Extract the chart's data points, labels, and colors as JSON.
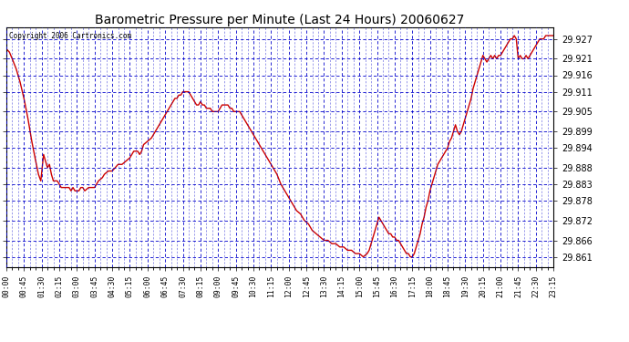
{
  "title": "Barometric Pressure per Minute (Last 24 Hours) 20060627",
  "copyright": "Copyright 2006 Cartronics.com",
  "background_color": "#ffffff",
  "plot_bg_color": "#ffffff",
  "line_color": "#cc0000",
  "grid_color": "#0000cc",
  "yticks": [
    29.861,
    29.866,
    29.872,
    29.878,
    29.883,
    29.888,
    29.894,
    29.899,
    29.905,
    29.911,
    29.916,
    29.921,
    29.927
  ],
  "ymin": 29.858,
  "ymax": 29.9305,
  "xtick_labels": [
    "00:00",
    "00:45",
    "01:30",
    "02:15",
    "03:00",
    "03:45",
    "04:30",
    "05:15",
    "06:00",
    "06:45",
    "07:30",
    "08:15",
    "09:00",
    "09:45",
    "10:30",
    "11:15",
    "12:00",
    "12:45",
    "13:30",
    "14:15",
    "15:00",
    "15:45",
    "16:30",
    "17:15",
    "18:00",
    "18:45",
    "19:30",
    "20:15",
    "21:00",
    "21:45",
    "22:30",
    "23:15"
  ],
  "x_values": [
    0,
    45,
    90,
    135,
    180,
    225,
    270,
    315,
    360,
    405,
    450,
    495,
    540,
    585,
    630,
    675,
    720,
    765,
    810,
    855,
    900,
    945,
    990,
    1035,
    1080,
    1125,
    1170,
    1215,
    1260,
    1305,
    1350,
    1395
  ],
  "pressure_data": [
    [
      0,
      29.924
    ],
    [
      8,
      29.923
    ],
    [
      15,
      29.921
    ],
    [
      25,
      29.918
    ],
    [
      35,
      29.914
    ],
    [
      45,
      29.909
    ],
    [
      55,
      29.903
    ],
    [
      65,
      29.896
    ],
    [
      75,
      29.89
    ],
    [
      82,
      29.886
    ],
    [
      88,
      29.884
    ],
    [
      95,
      29.892
    ],
    [
      100,
      29.89
    ],
    [
      105,
      29.888
    ],
    [
      110,
      29.889
    ],
    [
      115,
      29.886
    ],
    [
      120,
      29.884
    ],
    [
      125,
      29.884
    ],
    [
      130,
      29.884
    ],
    [
      135,
      29.883
    ],
    [
      140,
      29.882
    ],
    [
      145,
      29.882
    ],
    [
      150,
      29.882
    ],
    [
      155,
      29.882
    ],
    [
      160,
      29.882
    ],
    [
      165,
      29.881
    ],
    [
      170,
      29.882
    ],
    [
      175,
      29.881
    ],
    [
      180,
      29.881
    ],
    [
      185,
      29.881
    ],
    [
      190,
      29.882
    ],
    [
      195,
      29.882
    ],
    [
      200,
      29.881
    ],
    [
      210,
      29.882
    ],
    [
      215,
      29.882
    ],
    [
      220,
      29.882
    ],
    [
      225,
      29.882
    ],
    [
      235,
      29.884
    ],
    [
      245,
      29.885
    ],
    [
      250,
      29.886
    ],
    [
      260,
      29.887
    ],
    [
      270,
      29.887
    ],
    [
      285,
      29.889
    ],
    [
      295,
      29.889
    ],
    [
      305,
      29.89
    ],
    [
      315,
      29.891
    ],
    [
      320,
      29.892
    ],
    [
      325,
      29.893
    ],
    [
      330,
      29.893
    ],
    [
      335,
      29.893
    ],
    [
      340,
      29.892
    ],
    [
      345,
      29.893
    ],
    [
      350,
      29.895
    ],
    [
      360,
      29.896
    ],
    [
      370,
      29.897
    ],
    [
      380,
      29.899
    ],
    [
      390,
      29.901
    ],
    [
      400,
      29.903
    ],
    [
      405,
      29.904
    ],
    [
      410,
      29.905
    ],
    [
      415,
      29.906
    ],
    [
      420,
      29.907
    ],
    [
      425,
      29.908
    ],
    [
      430,
      29.909
    ],
    [
      435,
      29.909
    ],
    [
      440,
      29.91
    ],
    [
      445,
      29.91
    ],
    [
      450,
      29.911
    ],
    [
      455,
      29.911
    ],
    [
      460,
      29.911
    ],
    [
      465,
      29.911
    ],
    [
      470,
      29.91
    ],
    [
      475,
      29.909
    ],
    [
      480,
      29.908
    ],
    [
      485,
      29.907
    ],
    [
      490,
      29.907
    ],
    [
      495,
      29.908
    ],
    [
      500,
      29.907
    ],
    [
      505,
      29.907
    ],
    [
      510,
      29.906
    ],
    [
      515,
      29.906
    ],
    [
      520,
      29.906
    ],
    [
      525,
      29.905
    ],
    [
      530,
      29.905
    ],
    [
      535,
      29.905
    ],
    [
      540,
      29.905
    ],
    [
      545,
      29.906
    ],
    [
      550,
      29.907
    ],
    [
      555,
      29.907
    ],
    [
      560,
      29.907
    ],
    [
      565,
      29.907
    ],
    [
      570,
      29.906
    ],
    [
      575,
      29.906
    ],
    [
      580,
      29.905
    ],
    [
      585,
      29.905
    ],
    [
      590,
      29.905
    ],
    [
      595,
      29.905
    ],
    [
      600,
      29.904
    ],
    [
      605,
      29.903
    ],
    [
      610,
      29.902
    ],
    [
      615,
      29.901
    ],
    [
      620,
      29.9
    ],
    [
      625,
      29.899
    ],
    [
      630,
      29.898
    ],
    [
      640,
      29.896
    ],
    [
      650,
      29.894
    ],
    [
      660,
      29.892
    ],
    [
      670,
      29.89
    ],
    [
      680,
      29.888
    ],
    [
      690,
      29.886
    ],
    [
      700,
      29.883
    ],
    [
      710,
      29.881
    ],
    [
      720,
      29.879
    ],
    [
      730,
      29.877
    ],
    [
      740,
      29.875
    ],
    [
      750,
      29.874
    ],
    [
      760,
      29.872
    ],
    [
      770,
      29.871
    ],
    [
      780,
      29.869
    ],
    [
      790,
      29.868
    ],
    [
      800,
      29.867
    ],
    [
      810,
      29.866
    ],
    [
      820,
      29.866
    ],
    [
      830,
      29.865
    ],
    [
      840,
      29.865
    ],
    [
      850,
      29.864
    ],
    [
      860,
      29.864
    ],
    [
      870,
      29.863
    ],
    [
      880,
      29.863
    ],
    [
      890,
      29.862
    ],
    [
      900,
      29.862
    ],
    [
      910,
      29.861
    ],
    [
      920,
      29.862
    ],
    [
      925,
      29.863
    ],
    [
      930,
      29.865
    ],
    [
      935,
      29.867
    ],
    [
      940,
      29.869
    ],
    [
      945,
      29.871
    ],
    [
      950,
      29.873
    ],
    [
      955,
      29.872
    ],
    [
      960,
      29.871
    ],
    [
      965,
      29.87
    ],
    [
      970,
      29.869
    ],
    [
      975,
      29.868
    ],
    [
      980,
      29.868
    ],
    [
      985,
      29.867
    ],
    [
      990,
      29.867
    ],
    [
      995,
      29.866
    ],
    [
      1000,
      29.866
    ],
    [
      1005,
      29.865
    ],
    [
      1010,
      29.864
    ],
    [
      1015,
      29.863
    ],
    [
      1020,
      29.862
    ],
    [
      1025,
      29.862
    ],
    [
      1030,
      29.861
    ],
    [
      1035,
      29.861
    ],
    [
      1040,
      29.862
    ],
    [
      1045,
      29.864
    ],
    [
      1050,
      29.866
    ],
    [
      1055,
      29.868
    ],
    [
      1060,
      29.871
    ],
    [
      1065,
      29.873
    ],
    [
      1070,
      29.876
    ],
    [
      1075,
      29.878
    ],
    [
      1080,
      29.881
    ],
    [
      1085,
      29.883
    ],
    [
      1090,
      29.885
    ],
    [
      1095,
      29.887
    ],
    [
      1100,
      29.889
    ],
    [
      1105,
      29.89
    ],
    [
      1110,
      29.891
    ],
    [
      1115,
      29.892
    ],
    [
      1120,
      29.893
    ],
    [
      1125,
      29.894
    ],
    [
      1130,
      29.896
    ],
    [
      1135,
      29.897
    ],
    [
      1140,
      29.899
    ],
    [
      1145,
      29.901
    ],
    [
      1150,
      29.899
    ],
    [
      1155,
      29.898
    ],
    [
      1160,
      29.899
    ],
    [
      1165,
      29.901
    ],
    [
      1170,
      29.903
    ],
    [
      1175,
      29.905
    ],
    [
      1180,
      29.907
    ],
    [
      1185,
      29.909
    ],
    [
      1190,
      29.912
    ],
    [
      1195,
      29.914
    ],
    [
      1200,
      29.916
    ],
    [
      1205,
      29.918
    ],
    [
      1210,
      29.92
    ],
    [
      1215,
      29.922
    ],
    [
      1220,
      29.921
    ],
    [
      1225,
      29.92
    ],
    [
      1230,
      29.921
    ],
    [
      1235,
      29.922
    ],
    [
      1240,
      29.921
    ],
    [
      1245,
      29.922
    ],
    [
      1250,
      29.921
    ],
    [
      1255,
      29.922
    ],
    [
      1260,
      29.922
    ],
    [
      1265,
      29.923
    ],
    [
      1270,
      29.924
    ],
    [
      1275,
      29.925
    ],
    [
      1280,
      29.926
    ],
    [
      1285,
      29.927
    ],
    [
      1290,
      29.927
    ],
    [
      1295,
      29.928
    ],
    [
      1300,
      29.927
    ],
    [
      1305,
      29.921
    ],
    [
      1310,
      29.922
    ],
    [
      1315,
      29.921
    ],
    [
      1320,
      29.921
    ],
    [
      1325,
      29.922
    ],
    [
      1330,
      29.921
    ],
    [
      1335,
      29.922
    ],
    [
      1340,
      29.923
    ],
    [
      1345,
      29.924
    ],
    [
      1350,
      29.925
    ],
    [
      1355,
      29.926
    ],
    [
      1360,
      29.927
    ],
    [
      1365,
      29.927
    ],
    [
      1370,
      29.927
    ],
    [
      1375,
      29.928
    ],
    [
      1380,
      29.928
    ],
    [
      1385,
      29.928
    ],
    [
      1390,
      29.928
    ],
    [
      1395,
      29.928
    ]
  ]
}
